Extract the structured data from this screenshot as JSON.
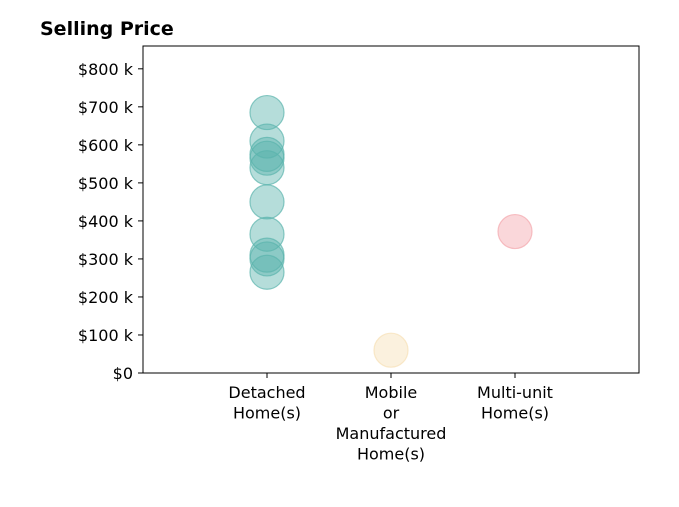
{
  "chart_data": {
    "type": "scatter",
    "title": "Selling Price",
    "xlabel": "",
    "ylabel": "",
    "categories": [
      [
        "Detached",
        "Home(s)"
      ],
      [
        "Mobile",
        "or",
        "Manufactured",
        "Home(s)"
      ],
      [
        "Multi-unit",
        "Home(s)"
      ]
    ],
    "x_range": [
      -1,
      3
    ],
    "ylim": [
      0,
      860000
    ],
    "y_ticks": [
      0,
      100000,
      200000,
      300000,
      400000,
      500000,
      600000,
      700000,
      800000
    ],
    "y_tick_labels": [
      "$0",
      "$100 k",
      "$200 k",
      "$300 k",
      "$400 k",
      "$500 k",
      "$600 k",
      "$700 k",
      "$800 k"
    ],
    "grid": false,
    "legend": "none",
    "series": [
      {
        "category_index": 0,
        "color": "#5ab4ac",
        "values": [
          685000,
          610000,
          575000,
          565000,
          540000,
          450000,
          365000,
          310000,
          300000,
          265000
        ]
      },
      {
        "category_index": 1,
        "color": "#f6e0b5",
        "values": [
          60000
        ]
      },
      {
        "category_index": 2,
        "color": "#f4a6ad",
        "values": [
          372000
        ]
      }
    ]
  }
}
